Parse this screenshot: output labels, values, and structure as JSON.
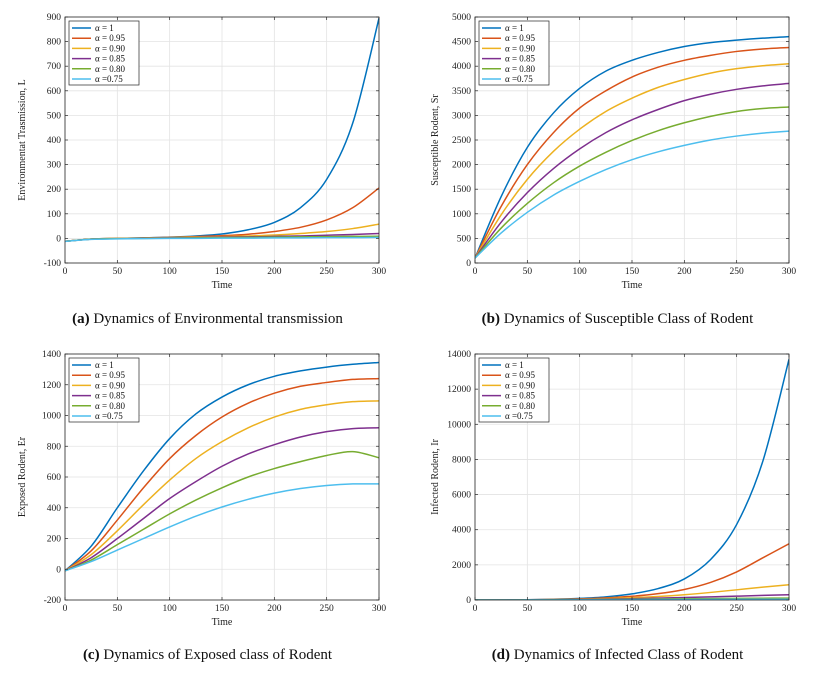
{
  "legend_labels": [
    "α = 1",
    "α = 0.95",
    "α = 0.90",
    "α = 0.85",
    "α = 0.80",
    "α =0.75"
  ],
  "series_colors": [
    "#0072BD",
    "#D95319",
    "#EDB120",
    "#7E2F8E",
    "#77AC30",
    "#4DBEEE"
  ],
  "chart_data": [
    {
      "type": "line",
      "caption_bold": "(a)",
      "caption": "Dynamics of Environmental transmission",
      "xlabel": "Time",
      "ylabel": "Environmentat Trasmission, L",
      "xlim": [
        0,
        300
      ],
      "ylim": [
        -100,
        900
      ],
      "xticks": [
        0,
        50,
        100,
        150,
        200,
        250,
        300
      ],
      "yticks": [
        -100,
        0,
        100,
        200,
        300,
        400,
        500,
        600,
        700,
        800,
        900
      ],
      "grid": true,
      "legend": "top-left",
      "x": [
        0,
        25,
        50,
        75,
        100,
        125,
        150,
        175,
        200,
        225,
        250,
        275,
        300
      ],
      "series": [
        {
          "name": "α = 1",
          "values": [
            -12,
            -3,
            0,
            2,
            5,
            10,
            18,
            35,
            65,
            125,
            240,
            470,
            895
          ]
        },
        {
          "name": "α = 0.95",
          "values": [
            -12,
            -3,
            0,
            2,
            4,
            7,
            11,
            17,
            28,
            45,
            75,
            125,
            205
          ]
        },
        {
          "name": "α = 0.90",
          "values": [
            -12,
            -3,
            0,
            1,
            3,
            5,
            7,
            10,
            14,
            20,
            28,
            40,
            58
          ]
        },
        {
          "name": "α = 0.85",
          "values": [
            -12,
            -3,
            -1,
            1,
            2,
            3,
            5,
            6,
            8,
            10,
            13,
            16,
            20
          ]
        },
        {
          "name": "α = 0.80",
          "values": [
            -12,
            -3,
            -1,
            0,
            1,
            2,
            3,
            4,
            5,
            6,
            7,
            8,
            9
          ]
        },
        {
          "name": "α =0.75",
          "values": [
            -12,
            -4,
            -2,
            -1,
            0,
            0,
            1,
            1,
            2,
            2,
            3,
            3,
            4
          ]
        }
      ]
    },
    {
      "type": "line",
      "caption_bold": "(b)",
      "caption": "Dynamics of Susceptible Class of Rodent",
      "xlabel": "Time",
      "ylabel": "Susceptible Rodent, Sr",
      "xlim": [
        0,
        300
      ],
      "ylim": [
        0,
        5000
      ],
      "xticks": [
        0,
        50,
        100,
        150,
        200,
        250,
        300
      ],
      "yticks": [
        0,
        500,
        1000,
        1500,
        2000,
        2500,
        3000,
        3500,
        4000,
        4500,
        5000
      ],
      "grid": true,
      "legend": "top-left",
      "x": [
        0,
        25,
        50,
        75,
        100,
        125,
        150,
        175,
        200,
        225,
        250,
        275,
        300
      ],
      "series": [
        {
          "name": "α = 1",
          "values": [
            100,
            1350,
            2350,
            3050,
            3550,
            3900,
            4120,
            4280,
            4400,
            4480,
            4530,
            4570,
            4600
          ]
        },
        {
          "name": "α = 0.95",
          "values": [
            100,
            1150,
            2000,
            2650,
            3150,
            3500,
            3780,
            3980,
            4120,
            4220,
            4300,
            4350,
            4380
          ]
        },
        {
          "name": "α = 0.90",
          "values": [
            100,
            980,
            1700,
            2270,
            2720,
            3080,
            3350,
            3570,
            3730,
            3860,
            3950,
            4010,
            4050
          ]
        },
        {
          "name": "α = 0.85",
          "values": [
            100,
            830,
            1430,
            1920,
            2320,
            2650,
            2910,
            3120,
            3300,
            3430,
            3530,
            3600,
            3650
          ]
        },
        {
          "name": "α = 0.80",
          "values": [
            100,
            710,
            1210,
            1630,
            1970,
            2250,
            2490,
            2690,
            2850,
            2980,
            3080,
            3140,
            3170
          ]
        },
        {
          "name": "α =0.75",
          "values": [
            100,
            610,
            1030,
            1380,
            1660,
            1900,
            2100,
            2260,
            2390,
            2500,
            2580,
            2640,
            2680
          ]
        }
      ]
    },
    {
      "type": "line",
      "caption_bold": "(c)",
      "caption": "Dynamics of Exposed class of Rodent",
      "xlabel": "Time",
      "ylabel": "Exposed Rodent, Er",
      "xlim": [
        0,
        300
      ],
      "ylim": [
        -200,
        1400
      ],
      "xticks": [
        0,
        50,
        100,
        150,
        200,
        250,
        300
      ],
      "yticks": [
        -200,
        0,
        200,
        400,
        600,
        800,
        1000,
        1200,
        1400
      ],
      "grid": true,
      "legend": "top-left",
      "x": [
        0,
        25,
        50,
        75,
        100,
        125,
        150,
        175,
        200,
        225,
        250,
        275,
        300
      ],
      "series": [
        {
          "name": "α = 1",
          "values": [
            -10,
            150,
            400,
            640,
            850,
            1010,
            1120,
            1200,
            1255,
            1290,
            1315,
            1333,
            1345
          ]
        },
        {
          "name": "α = 0.95",
          "values": [
            -10,
            120,
            320,
            530,
            720,
            870,
            990,
            1080,
            1145,
            1190,
            1215,
            1235,
            1240
          ]
        },
        {
          "name": "α = 0.90",
          "values": [
            -10,
            95,
            250,
            420,
            580,
            720,
            830,
            920,
            990,
            1040,
            1070,
            1090,
            1095
          ]
        },
        {
          "name": "α = 0.85",
          "values": [
            -10,
            75,
            200,
            330,
            460,
            570,
            670,
            750,
            810,
            860,
            895,
            915,
            920
          ]
        },
        {
          "name": "α = 0.80",
          "values": [
            -10,
            60,
            160,
            260,
            360,
            450,
            530,
            600,
            655,
            700,
            740,
            765,
            725
          ]
        },
        {
          "name": "α =0.75",
          "values": [
            -10,
            50,
            125,
            200,
            275,
            345,
            405,
            455,
            495,
            525,
            545,
            555,
            555
          ]
        }
      ]
    },
    {
      "type": "line",
      "caption_bold": "(d)",
      "caption": "Dynamics of Infected Class of Rodent",
      "xlabel": "Time",
      "ylabel": "Infected Rodent, Ir",
      "xlim": [
        0,
        300
      ],
      "ylim": [
        0,
        14000
      ],
      "xticks": [
        0,
        50,
        100,
        150,
        200,
        250,
        300
      ],
      "yticks": [
        0,
        2000,
        4000,
        6000,
        8000,
        10000,
        12000,
        14000
      ],
      "grid": true,
      "legend": "top-left",
      "x": [
        0,
        25,
        50,
        75,
        100,
        125,
        150,
        175,
        200,
        225,
        250,
        275,
        300
      ],
      "series": [
        {
          "name": "α = 1",
          "values": [
            0,
            5,
            15,
            40,
            90,
            180,
            350,
            650,
            1200,
            2300,
            4300,
            7900,
            13700
          ]
        },
        {
          "name": "α = 0.95",
          "values": [
            0,
            4,
            12,
            30,
            65,
            120,
            210,
            360,
            600,
            1000,
            1600,
            2400,
            3200
          ]
        },
        {
          "name": "α = 0.90",
          "values": [
            0,
            3,
            10,
            22,
            45,
            80,
            130,
            200,
            300,
            430,
            580,
            730,
            870
          ]
        },
        {
          "name": "α = 0.85",
          "values": [
            0,
            2,
            8,
            16,
            30,
            50,
            75,
            105,
            140,
            180,
            220,
            260,
            300
          ]
        },
        {
          "name": "α = 0.80",
          "values": [
            0,
            2,
            6,
            12,
            20,
            30,
            42,
            55,
            68,
            80,
            92,
            102,
            110
          ]
        },
        {
          "name": "α =0.75",
          "values": [
            0,
            1,
            4,
            8,
            12,
            17,
            22,
            27,
            32,
            36,
            40,
            43,
            45
          ]
        }
      ]
    }
  ]
}
